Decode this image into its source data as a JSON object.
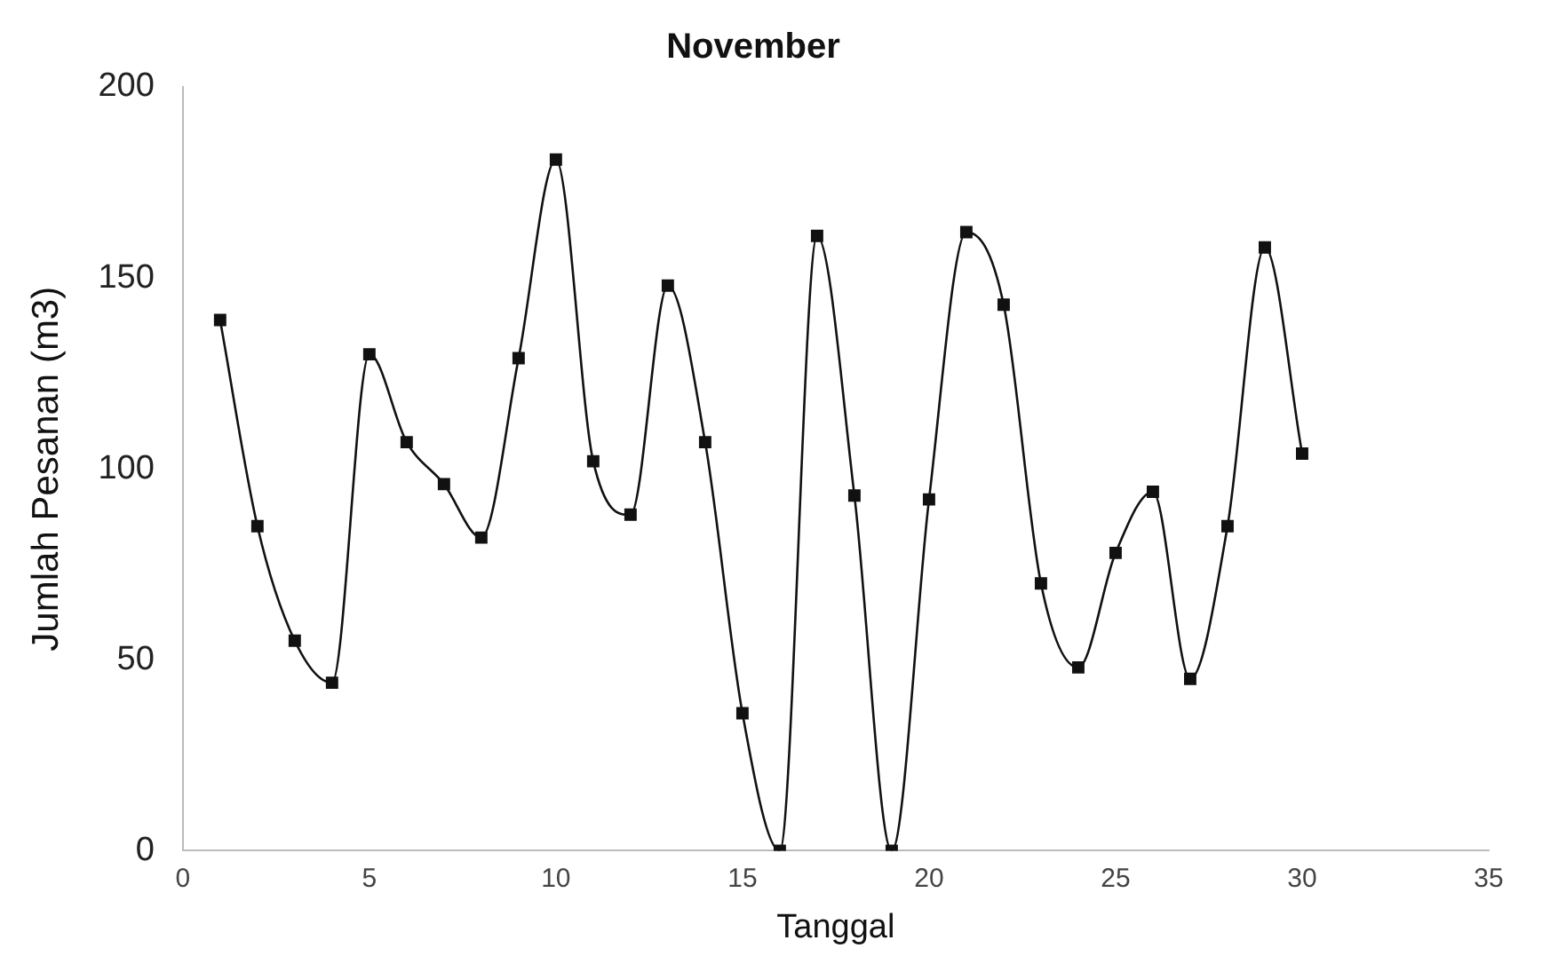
{
  "chart_data": {
    "type": "line",
    "title": "November",
    "xlabel": "Tanggal",
    "ylabel": "Jumlah Pesanan (m3)",
    "x": [
      1,
      2,
      3,
      4,
      5,
      6,
      7,
      8,
      9,
      10,
      11,
      12,
      13,
      14,
      15,
      16,
      17,
      18,
      19,
      20,
      21,
      22,
      23,
      24,
      25,
      26,
      27,
      28,
      29,
      30
    ],
    "series": [
      {
        "color": "#111111",
        "values": [
          139,
          85,
          55,
          44,
          130,
          107,
          96,
          82,
          129,
          181,
          102,
          88,
          148,
          107,
          36,
          0,
          161,
          93,
          0,
          92,
          162,
          143,
          70,
          48,
          78,
          94,
          45,
          85,
          158,
          104
        ]
      }
    ],
    "xlim": [
      0,
      35
    ],
    "xticks": [
      0,
      5,
      10,
      15,
      20,
      25,
      30,
      35
    ],
    "ylim": [
      0,
      200
    ],
    "yticks": [
      0,
      50,
      100,
      150,
      200
    ],
    "grid": false,
    "legend": false,
    "marker": "square",
    "line_style": "solid"
  }
}
